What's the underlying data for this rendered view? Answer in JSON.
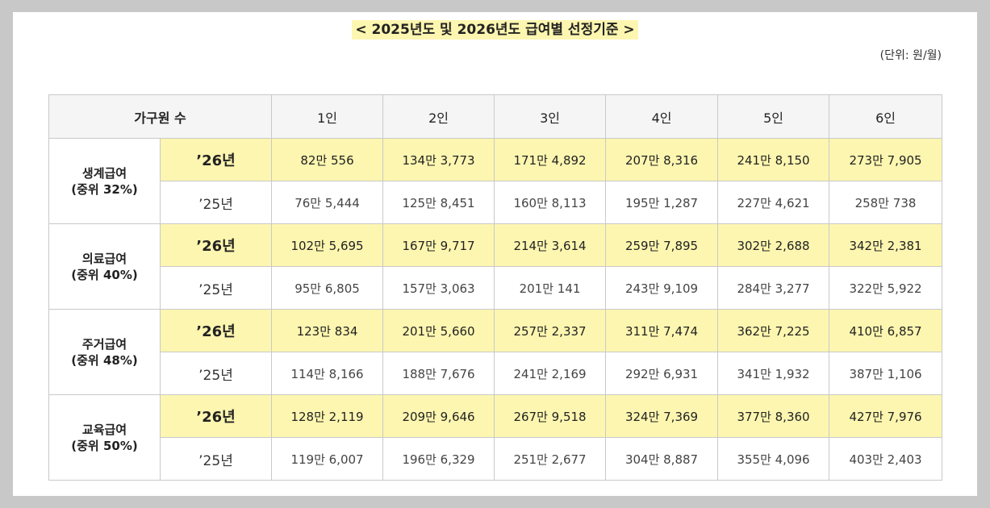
{
  "title": "< 2025년도 및 2026년도 급여별 선정기준 >",
  "unit": "(단위: 원/월)",
  "colors": {
    "highlight": "#fdf6b0",
    "header_bg": "#f5f5f5",
    "border": "#c9c9c9"
  },
  "table": {
    "header": {
      "label": "가구원 수",
      "columns": [
        "1인",
        "2인",
        "3인",
        "4인",
        "5인",
        "6인"
      ]
    },
    "groups": [
      {
        "name": "생계급여",
        "note": "(중위 32%)",
        "y26": {
          "label": "’26년",
          "values": [
            "82만 556",
            "134만 3,773",
            "171만 4,892",
            "207만 8,316",
            "241만 8,150",
            "273만 7,905"
          ]
        },
        "y25": {
          "label": "’25년",
          "values": [
            "76만 5,444",
            "125만 8,451",
            "160만 8,113",
            "195만 1,287",
            "227만 4,621",
            "258만 738"
          ]
        }
      },
      {
        "name": "의료급여",
        "note": "(중위 40%)",
        "y26": {
          "label": "’26년",
          "values": [
            "102만 5,695",
            "167만 9,717",
            "214만 3,614",
            "259만 7,895",
            "302만 2,688",
            "342만 2,381"
          ]
        },
        "y25": {
          "label": "’25년",
          "values": [
            "95만 6,805",
            "157만 3,063",
            "201만 141",
            "243만 9,109",
            "284만 3,277",
            "322만 5,922"
          ]
        }
      },
      {
        "name": "주거급여",
        "note": "(중위 48%)",
        "y26": {
          "label": "’26년",
          "values": [
            "123만 834",
            "201만 5,660",
            "257만 2,337",
            "311만 7,474",
            "362만 7,225",
            "410만 6,857"
          ]
        },
        "y25": {
          "label": "’25년",
          "values": [
            "114만 8,166",
            "188만 7,676",
            "241만 2,169",
            "292만 6,931",
            "341만 1,932",
            "387만 1,106"
          ]
        }
      },
      {
        "name": "교육급여",
        "note": "(중위 50%)",
        "y26": {
          "label": "’26년",
          "values": [
            "128만 2,119",
            "209만 9,646",
            "267만 9,518",
            "324만 7,369",
            "377만 8,360",
            "427만 7,976"
          ]
        },
        "y25": {
          "label": "’25년",
          "values": [
            "119만 6,007",
            "196만 6,329",
            "251만 2,677",
            "304만 8,887",
            "355만 4,096",
            "403만 2,403"
          ]
        }
      }
    ]
  }
}
